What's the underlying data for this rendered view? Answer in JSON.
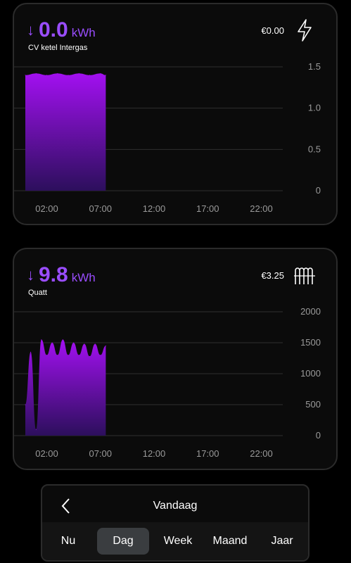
{
  "cards": [
    {
      "arrow": "↓",
      "value": "0.0",
      "unit": "kWh",
      "device": "CV ketel Intergas",
      "cost": "€0.00",
      "icon": "lightning-icon",
      "y_ticks": [
        "1.5",
        "1.0",
        "0.5",
        "0"
      ],
      "x_ticks": [
        "02:00",
        "07:00",
        "12:00",
        "17:00",
        "22:00"
      ]
    },
    {
      "arrow": "↓",
      "value": "9.8",
      "unit": "kWh",
      "device": "Quatt",
      "cost": "€3.25",
      "icon": "radiator-icon",
      "y_ticks": [
        "2000",
        "1500",
        "1000",
        "500",
        "0"
      ],
      "x_ticks": [
        "02:00",
        "07:00",
        "12:00",
        "17:00",
        "22:00"
      ]
    }
  ],
  "nav": {
    "title": "Vandaag",
    "back_icon": "chevron-left-icon",
    "tabs": [
      "Nu",
      "Dag",
      "Week",
      "Maand",
      "Jaar"
    ],
    "active_tab": "Dag"
  },
  "chart_data": [
    {
      "type": "area",
      "ylim": [
        0,
        1.5
      ],
      "x": [
        "00:00",
        "01:00",
        "02:00",
        "03:00",
        "04:00",
        "05:00",
        "06:00",
        "07:00",
        "07:30"
      ],
      "values": [
        1.4,
        1.42,
        1.4,
        1.42,
        1.4,
        1.42,
        1.4,
        1.42,
        1.4
      ],
      "xlabel": "",
      "ylabel": ""
    },
    {
      "type": "area",
      "ylim": [
        0,
        2000
      ],
      "x": [
        "00:00",
        "00:30",
        "01:00",
        "01:30",
        "02:00",
        "02:30",
        "03:00",
        "03:30",
        "04:00",
        "04:30",
        "05:00",
        "05:30",
        "06:00",
        "06:30",
        "07:00",
        "07:30"
      ],
      "values": [
        500,
        1350,
        100,
        1550,
        1300,
        1500,
        1300,
        1550,
        1300,
        1500,
        1300,
        1480,
        1280,
        1480,
        1300,
        1450
      ],
      "xlabel": "",
      "ylabel": ""
    }
  ]
}
